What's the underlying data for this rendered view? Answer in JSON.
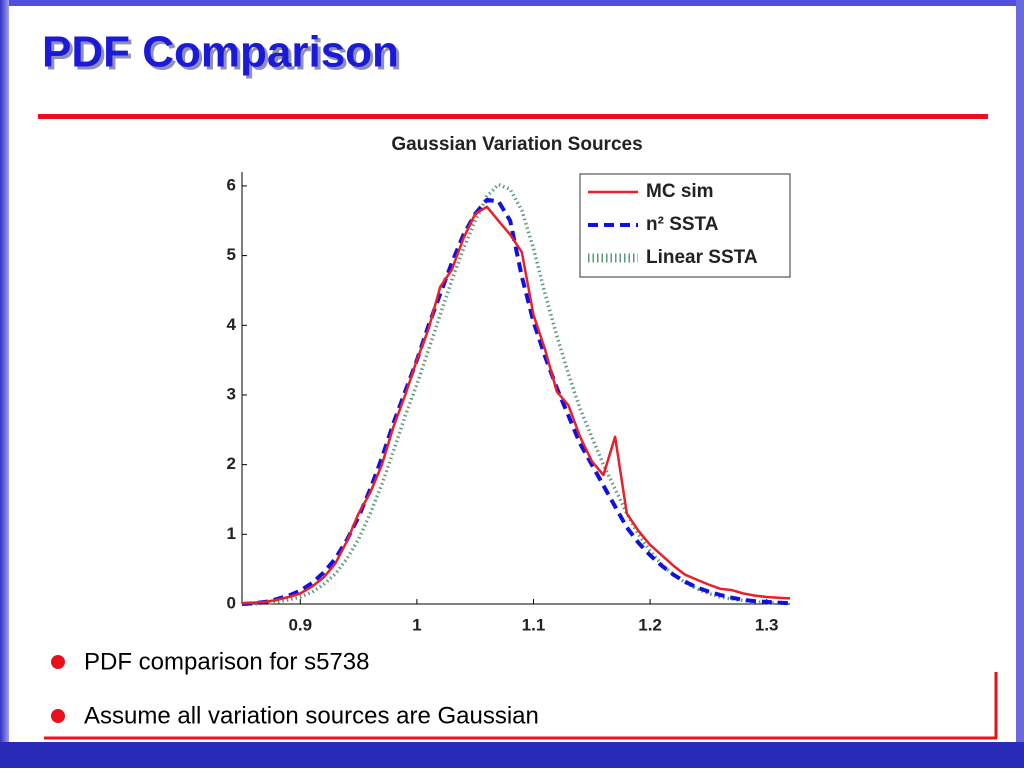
{
  "slide": {
    "title": "PDF Comparison",
    "bullets": [
      "PDF comparison for s5738",
      "Assume all variation sources are Gaussian"
    ]
  },
  "chart_data": {
    "type": "line",
    "title": "Gaussian Variation Sources",
    "x": [
      0.85,
      0.86,
      0.87,
      0.88,
      0.89,
      0.9,
      0.91,
      0.92,
      0.93,
      0.94,
      0.95,
      0.96,
      0.97,
      0.98,
      0.99,
      1.0,
      1.01,
      1.02,
      1.03,
      1.04,
      1.05,
      1.06,
      1.07,
      1.08,
      1.09,
      1.1,
      1.11,
      1.12,
      1.13,
      1.14,
      1.15,
      1.16,
      1.17,
      1.18,
      1.19,
      1.2,
      1.21,
      1.22,
      1.23,
      1.24,
      1.25,
      1.26,
      1.27,
      1.28,
      1.29,
      1.3,
      1.31,
      1.32
    ],
    "series": [
      {
        "name": "MC sim",
        "color": "#e8202a",
        "style": "solid",
        "values": [
          0.01,
          0.02,
          0.03,
          0.06,
          0.1,
          0.15,
          0.25,
          0.38,
          0.58,
          0.9,
          1.3,
          1.6,
          2.0,
          2.55,
          3.0,
          3.5,
          3.95,
          4.55,
          4.8,
          5.25,
          5.6,
          5.7,
          5.5,
          5.3,
          5.05,
          4.15,
          3.65,
          3.05,
          2.85,
          2.4,
          2.05,
          1.85,
          2.4,
          1.3,
          1.05,
          0.85,
          0.7,
          0.55,
          0.42,
          0.35,
          0.28,
          0.22,
          0.2,
          0.15,
          0.12,
          0.1,
          0.09,
          0.08
        ]
      },
      {
        "name": "n² SSTA",
        "color": "#1010e0",
        "style": "dashed",
        "values": [
          0.0,
          0.01,
          0.03,
          0.07,
          0.12,
          0.19,
          0.3,
          0.45,
          0.65,
          0.92,
          1.25,
          1.65,
          2.1,
          2.6,
          3.05,
          3.5,
          4.0,
          4.45,
          4.9,
          5.3,
          5.6,
          5.8,
          5.78,
          5.5,
          4.7,
          4.05,
          3.55,
          3.1,
          2.7,
          2.3,
          2.0,
          1.7,
          1.4,
          1.1,
          0.88,
          0.7,
          0.55,
          0.42,
          0.32,
          0.24,
          0.18,
          0.13,
          0.09,
          0.06,
          0.04,
          0.03,
          0.02,
          0.01
        ]
      },
      {
        "name": "Linear SSTA",
        "color": "#5a9a7a",
        "style": "dotted",
        "values": [
          0,
          0,
          0.01,
          0.03,
          0.06,
          0.1,
          0.17,
          0.28,
          0.43,
          0.65,
          0.93,
          1.3,
          1.72,
          2.2,
          2.7,
          3.15,
          3.65,
          4.15,
          4.65,
          5.1,
          5.5,
          5.85,
          6.02,
          5.95,
          5.65,
          5.1,
          4.45,
          3.85,
          3.3,
          2.8,
          2.4,
          2.0,
          1.65,
          1.3,
          1.0,
          0.76,
          0.57,
          0.42,
          0.31,
          0.22,
          0.15,
          0.1,
          0.07,
          0.05,
          0.03,
          0.02,
          0.01,
          0.01
        ]
      }
    ],
    "xlim": [
      0.85,
      1.32
    ],
    "xticks": [
      0.9,
      1,
      1.1,
      1.2,
      1.3
    ],
    "ylim": [
      0,
      6.2
    ],
    "yticks": [
      0,
      1,
      2,
      3,
      4,
      5,
      6
    ],
    "legend": "upper right"
  }
}
